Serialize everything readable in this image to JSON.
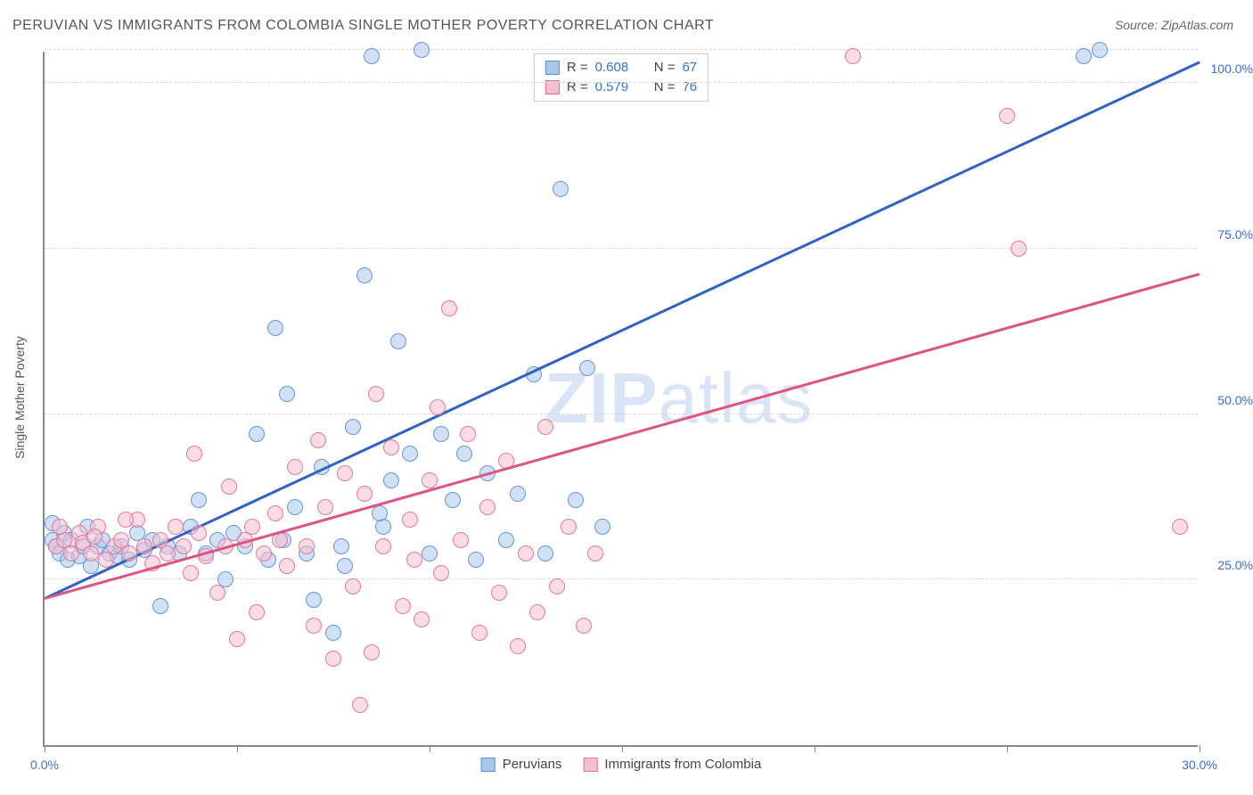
{
  "title": "PERUVIAN VS IMMIGRANTS FROM COLOMBIA SINGLE MOTHER POVERTY CORRELATION CHART",
  "source": "Source: ZipAtlas.com",
  "y_axis_title": "Single Mother Poverty",
  "watermark": "ZIPatlas",
  "chart": {
    "type": "scatter",
    "xlim": [
      0,
      30
    ],
    "ylim": [
      0,
      105
    ],
    "x_ticks": [
      0,
      5,
      10,
      15,
      20,
      25,
      30
    ],
    "x_tick_labels": {
      "0": "0.0%",
      "30": "30.0%"
    },
    "y_grid": [
      25,
      50,
      75,
      100,
      105
    ],
    "y_tick_labels": {
      "25": "25.0%",
      "50": "50.0%",
      "75": "75.0%",
      "100": "100.0%"
    },
    "background_color": "#ffffff",
    "grid_color": "#d8d8d8",
    "axis_color": "#888888",
    "tick_label_color": "#3a6fd8",
    "marker_radius": 9,
    "marker_opacity": 0.55,
    "series": [
      {
        "name": "Peruvians",
        "color_fill": "#a9c6ec",
        "color_stroke": "#5b8fd6",
        "trend_color": "#2f62c9",
        "R": 0.608,
        "N": 67,
        "trend": {
          "x1": 0,
          "y1": 22,
          "x2": 30,
          "y2": 103
        },
        "points": [
          [
            0.2,
            31
          ],
          [
            0.2,
            33.5
          ],
          [
            0.3,
            30
          ],
          [
            0.4,
            29
          ],
          [
            0.5,
            32
          ],
          [
            0.6,
            28
          ],
          [
            0.7,
            31
          ],
          [
            0.9,
            28.5
          ],
          [
            1.0,
            30
          ],
          [
            1.1,
            33
          ],
          [
            1.2,
            27
          ],
          [
            1.4,
            30
          ],
          [
            1.5,
            31
          ],
          [
            1.7,
            29
          ],
          [
            1.9,
            28.5
          ],
          [
            2.0,
            30
          ],
          [
            2.2,
            28
          ],
          [
            2.4,
            32
          ],
          [
            2.6,
            29.5
          ],
          [
            2.8,
            31
          ],
          [
            3.0,
            21
          ],
          [
            3.2,
            30
          ],
          [
            3.5,
            29
          ],
          [
            3.8,
            33
          ],
          [
            4.0,
            37
          ],
          [
            4.2,
            29
          ],
          [
            4.5,
            31
          ],
          [
            4.9,
            32
          ],
          [
            5.2,
            30
          ],
          [
            5.5,
            47
          ],
          [
            5.8,
            28
          ],
          [
            6.0,
            63
          ],
          [
            6.2,
            31
          ],
          [
            6.5,
            36
          ],
          [
            6.8,
            29
          ],
          [
            7.0,
            22
          ],
          [
            7.2,
            42
          ],
          [
            7.5,
            17
          ],
          [
            7.7,
            30
          ],
          [
            8.0,
            48
          ],
          [
            8.3,
            71
          ],
          [
            8.5,
            104
          ],
          [
            8.8,
            33
          ],
          [
            9.2,
            61
          ],
          [
            9.5,
            44
          ],
          [
            9.8,
            105
          ],
          [
            10.0,
            29
          ],
          [
            10.3,
            47
          ],
          [
            10.6,
            37
          ],
          [
            10.9,
            44
          ],
          [
            11.2,
            28
          ],
          [
            11.5,
            41
          ],
          [
            12.0,
            31
          ],
          [
            12.3,
            38
          ],
          [
            12.7,
            56
          ],
          [
            13.0,
            29
          ],
          [
            13.4,
            84
          ],
          [
            13.8,
            37
          ],
          [
            14.1,
            57
          ],
          [
            14.5,
            33
          ],
          [
            27.0,
            104
          ],
          [
            27.4,
            105
          ],
          [
            8.7,
            35
          ],
          [
            6.3,
            53
          ],
          [
            7.8,
            27
          ],
          [
            9.0,
            40
          ],
          [
            4.7,
            25
          ]
        ]
      },
      {
        "name": "Immigrants from Colombia",
        "color_fill": "#f4c0cd",
        "color_stroke": "#e66f93",
        "trend_color": "#e0537f",
        "R": 0.579,
        "N": 76,
        "trend": {
          "x1": 0,
          "y1": 22,
          "x2": 30,
          "y2": 71
        },
        "points": [
          [
            0.3,
            30
          ],
          [
            0.5,
            31
          ],
          [
            0.7,
            29
          ],
          [
            0.9,
            32
          ],
          [
            1.0,
            30.5
          ],
          [
            1.2,
            29
          ],
          [
            1.4,
            33
          ],
          [
            1.6,
            28
          ],
          [
            1.8,
            30
          ],
          [
            2.0,
            31
          ],
          [
            2.2,
            29
          ],
          [
            2.4,
            34
          ],
          [
            2.6,
            30
          ],
          [
            2.8,
            27.5
          ],
          [
            3.0,
            31
          ],
          [
            3.2,
            29
          ],
          [
            3.4,
            33
          ],
          [
            3.6,
            30
          ],
          [
            3.8,
            26
          ],
          [
            4.0,
            32
          ],
          [
            4.2,
            28.5
          ],
          [
            4.5,
            23
          ],
          [
            4.7,
            30
          ],
          [
            5.0,
            16
          ],
          [
            5.2,
            31
          ],
          [
            5.5,
            20
          ],
          [
            5.7,
            29
          ],
          [
            6.0,
            35
          ],
          [
            6.3,
            27
          ],
          [
            6.5,
            42
          ],
          [
            6.8,
            30
          ],
          [
            7.0,
            18
          ],
          [
            7.3,
            36
          ],
          [
            7.5,
            13
          ],
          [
            7.8,
            41
          ],
          [
            8.0,
            24
          ],
          [
            8.3,
            38
          ],
          [
            8.5,
            14
          ],
          [
            8.8,
            30
          ],
          [
            9.0,
            45
          ],
          [
            9.3,
            21
          ],
          [
            9.5,
            34
          ],
          [
            9.8,
            19
          ],
          [
            10.0,
            40
          ],
          [
            10.3,
            26
          ],
          [
            10.5,
            66
          ],
          [
            10.8,
            31
          ],
          [
            11.0,
            47
          ],
          [
            11.3,
            17
          ],
          [
            11.5,
            36
          ],
          [
            11.8,
            23
          ],
          [
            12.0,
            43
          ],
          [
            12.3,
            15
          ],
          [
            12.5,
            29
          ],
          [
            12.8,
            20
          ],
          [
            13.0,
            48
          ],
          [
            13.3,
            24
          ],
          [
            13.6,
            33
          ],
          [
            14.0,
            18
          ],
          [
            14.3,
            29
          ],
          [
            8.2,
            6
          ],
          [
            10.2,
            51
          ],
          [
            21.0,
            104
          ],
          [
            25.0,
            95
          ],
          [
            25.3,
            75
          ],
          [
            29.5,
            33
          ],
          [
            3.9,
            44
          ],
          [
            4.8,
            39
          ],
          [
            6.1,
            31
          ],
          [
            7.1,
            46
          ],
          [
            8.6,
            53
          ],
          [
            9.6,
            28
          ],
          [
            2.1,
            34
          ],
          [
            1.3,
            31.5
          ],
          [
            0.4,
            33
          ],
          [
            5.4,
            33
          ]
        ]
      }
    ]
  },
  "legend": {
    "series1_label": "Peruvians",
    "series2_label": "Immigrants from Colombia"
  },
  "stats_labels": {
    "R": "R =",
    "N": "N ="
  }
}
